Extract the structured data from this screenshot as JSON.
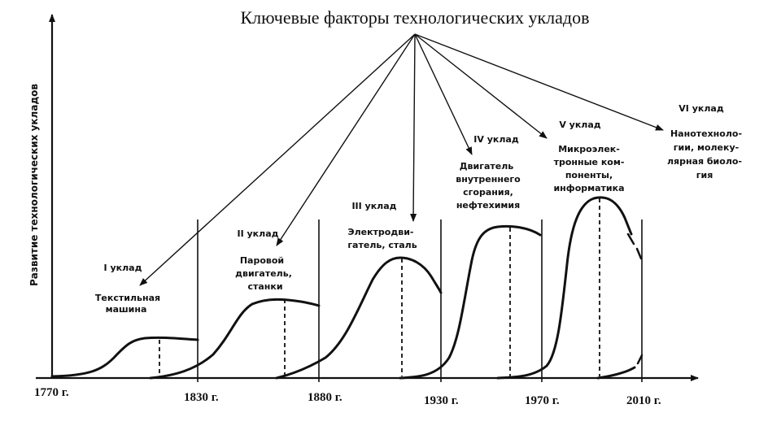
{
  "title": "Ключевые факторы технологических укладов",
  "y_axis_label": "Развитие технологических укладов",
  "x_ticks": [
    "1770 г.",
    "1830 г.",
    "1880 г.",
    "1930 г.",
    "1970 г.",
    "2010 г."
  ],
  "waves": [
    {
      "name": "I уклад",
      "lines": [
        "Текстильная",
        "машина"
      ]
    },
    {
      "name": "II уклад",
      "lines": [
        "Паровой",
        "двигатель,",
        "станки"
      ]
    },
    {
      "name": "III уклад",
      "lines": [
        "Электродви-",
        "гатель, сталь"
      ]
    },
    {
      "name": "IV уклад",
      "lines": [
        "Двигатель",
        "внутреннего",
        "сгорания,",
        "нефтехимия"
      ]
    },
    {
      "name": "V уклад",
      "lines": [
        "Микроэлек-",
        "тронные ком-",
        "поненты,",
        "информатика"
      ]
    },
    {
      "name": "VI уклад",
      "lines": [
        "Нанотехноло-",
        "гии, молеку-",
        "лярная биоло-",
        "гия"
      ]
    }
  ]
}
